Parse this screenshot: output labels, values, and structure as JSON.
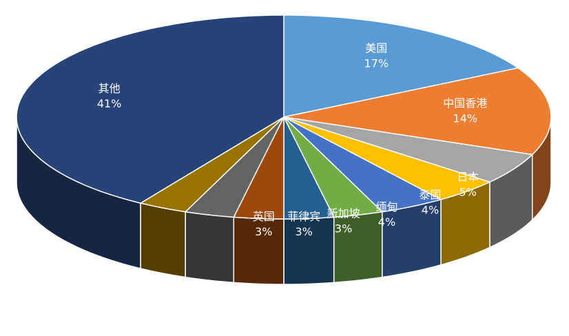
{
  "chart_data": {
    "type": "pie",
    "style": "3d",
    "slices": [
      {
        "label": "美国",
        "value": 17,
        "value_label": "17%",
        "color": "#5B9BD5"
      },
      {
        "label": "中国香港",
        "value": 14,
        "value_label": "14%",
        "color": "#ED7D31"
      },
      {
        "label": "日本",
        "value": 5,
        "value_label": "5%",
        "color": "#A5A5A5"
      },
      {
        "label": "泰国",
        "value": 4,
        "value_label": "4%",
        "color": "#FFC000"
      },
      {
        "label": "缅甸",
        "value": 4,
        "value_label": "4%",
        "color": "#4472C4"
      },
      {
        "label": "新加坡",
        "value": 3,
        "value_label": "3%",
        "color": "#70AD47"
      },
      {
        "label": "菲律宾",
        "value": 3,
        "value_label": "3%",
        "color": "#255E91"
      },
      {
        "label": "英国",
        "value": 3,
        "value_label": "3%",
        "color": "#9E480E"
      },
      {
        "label": "",
        "value": 3,
        "value_label": "",
        "color": "#636363"
      },
      {
        "label": "",
        "value": 3,
        "value_label": "",
        "color": "#997300"
      },
      {
        "label": "其他",
        "value": 41,
        "value_label": "41%",
        "color": "#264478"
      }
    ]
  }
}
